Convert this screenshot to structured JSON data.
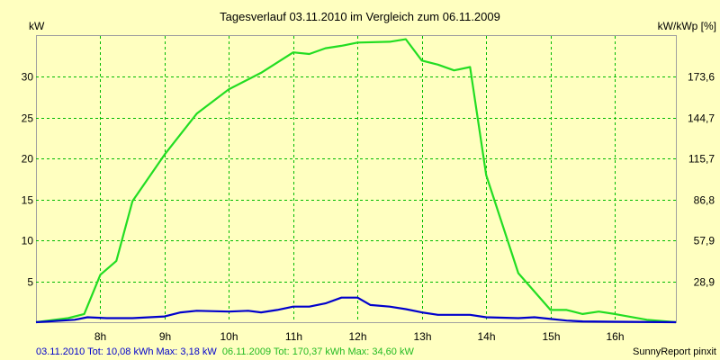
{
  "chart_data": {
    "type": "line",
    "title": "Tagesverlauf 03.11.2010 im Vergleich zum 06.11.2009",
    "ylabel_left": "kW",
    "ylabel_right": "kW/kWp [%]",
    "xlim": [
      7.0,
      16.95
    ],
    "ylim": [
      0,
      35
    ],
    "x_ticks": [
      {
        "value": 8,
        "label": "8h"
      },
      {
        "value": 9,
        "label": "9h"
      },
      {
        "value": 10,
        "label": "10h"
      },
      {
        "value": 11,
        "label": "11h"
      },
      {
        "value": 12,
        "label": "12h"
      },
      {
        "value": 13,
        "label": "13h"
      },
      {
        "value": 14,
        "label": "14h"
      },
      {
        "value": 15,
        "label": "15h"
      },
      {
        "value": 16,
        "label": "16h"
      }
    ],
    "y_ticks_left": [
      {
        "value": 5,
        "label": "5"
      },
      {
        "value": 10,
        "label": "10"
      },
      {
        "value": 15,
        "label": "15"
      },
      {
        "value": 20,
        "label": "20"
      },
      {
        "value": 25,
        "label": "25"
      },
      {
        "value": 30,
        "label": "30"
      }
    ],
    "y_ticks_right": [
      {
        "value": 5,
        "label": "28,9"
      },
      {
        "value": 10,
        "label": "57,9"
      },
      {
        "value": 15,
        "label": "86,8"
      },
      {
        "value": 20,
        "label": "115,7"
      },
      {
        "value": 25,
        "label": "144,7"
      },
      {
        "value": 30,
        "label": "173,6"
      }
    ],
    "grid": true,
    "series": [
      {
        "name": "03.11.2010",
        "color": "#0000cc",
        "points": [
          [
            7.0,
            0.0
          ],
          [
            7.6,
            0.3
          ],
          [
            7.8,
            0.6
          ],
          [
            8.1,
            0.5
          ],
          [
            8.5,
            0.5
          ],
          [
            9.0,
            0.7
          ],
          [
            9.25,
            1.2
          ],
          [
            9.5,
            1.4
          ],
          [
            10.0,
            1.3
          ],
          [
            10.3,
            1.4
          ],
          [
            10.5,
            1.2
          ],
          [
            10.75,
            1.5
          ],
          [
            11.0,
            1.9
          ],
          [
            11.25,
            1.9
          ],
          [
            11.5,
            2.3
          ],
          [
            11.75,
            3.0
          ],
          [
            12.0,
            3.0
          ],
          [
            12.2,
            2.1
          ],
          [
            12.5,
            1.9
          ],
          [
            12.75,
            1.6
          ],
          [
            13.0,
            1.2
          ],
          [
            13.25,
            0.9
          ],
          [
            13.5,
            0.9
          ],
          [
            13.75,
            0.9
          ],
          [
            14.0,
            0.6
          ],
          [
            14.5,
            0.5
          ],
          [
            14.75,
            0.6
          ],
          [
            15.0,
            0.4
          ],
          [
            15.25,
            0.2
          ],
          [
            15.5,
            0.1
          ],
          [
            16.0,
            0.05
          ],
          [
            16.95,
            0.0
          ]
        ]
      },
      {
        "name": "06.11.2009",
        "color": "#22dd22",
        "points": [
          [
            7.0,
            0.0
          ],
          [
            7.5,
            0.5
          ],
          [
            7.75,
            1.0
          ],
          [
            8.0,
            5.8
          ],
          [
            8.25,
            7.5
          ],
          [
            8.5,
            14.8
          ],
          [
            9.0,
            20.5
          ],
          [
            9.5,
            25.5
          ],
          [
            10.0,
            28.5
          ],
          [
            10.5,
            30.5
          ],
          [
            11.0,
            33.0
          ],
          [
            11.25,
            32.8
          ],
          [
            11.5,
            33.5
          ],
          [
            11.75,
            33.8
          ],
          [
            12.0,
            34.2
          ],
          [
            12.5,
            34.3
          ],
          [
            12.75,
            34.6
          ],
          [
            13.0,
            32.0
          ],
          [
            13.25,
            31.5
          ],
          [
            13.5,
            30.8
          ],
          [
            13.75,
            31.2
          ],
          [
            14.0,
            18.0
          ],
          [
            14.5,
            6.0
          ],
          [
            15.0,
            1.5
          ],
          [
            15.25,
            1.5
          ],
          [
            15.5,
            1.0
          ],
          [
            15.75,
            1.3
          ],
          [
            16.0,
            1.0
          ],
          [
            16.5,
            0.3
          ],
          [
            16.95,
            0.0
          ]
        ]
      }
    ]
  },
  "footer": {
    "blue_series_text": "03.11.2010 Tot: 10,08 kWh Max: 3,18 kW",
    "green_series_text": "06.11.2009 Tot: 170,37 kWh Max: 34,60 kW",
    "credit": "SunnyReport pinxit"
  }
}
